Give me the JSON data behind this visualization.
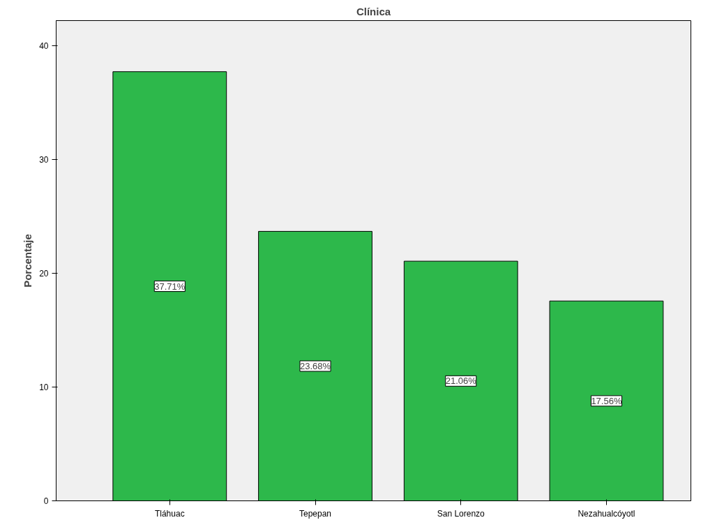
{
  "chart_data": {
    "type": "bar",
    "title": "Clínica",
    "ylabel": "Porcentaje",
    "categories": [
      "Tláhuac",
      "Tepepan",
      "San Lorenzo",
      "Nezahualcóyotl"
    ],
    "values": [
      37.71,
      23.68,
      21.06,
      17.56
    ],
    "value_labels": [
      "37.71%",
      "23.68%",
      "21.06%",
      "17.56%"
    ],
    "color": "#2db84b",
    "ylim": [
      0,
      42.2
    ],
    "yticks": [
      0,
      10,
      20,
      30,
      40
    ],
    "grid": false
  }
}
